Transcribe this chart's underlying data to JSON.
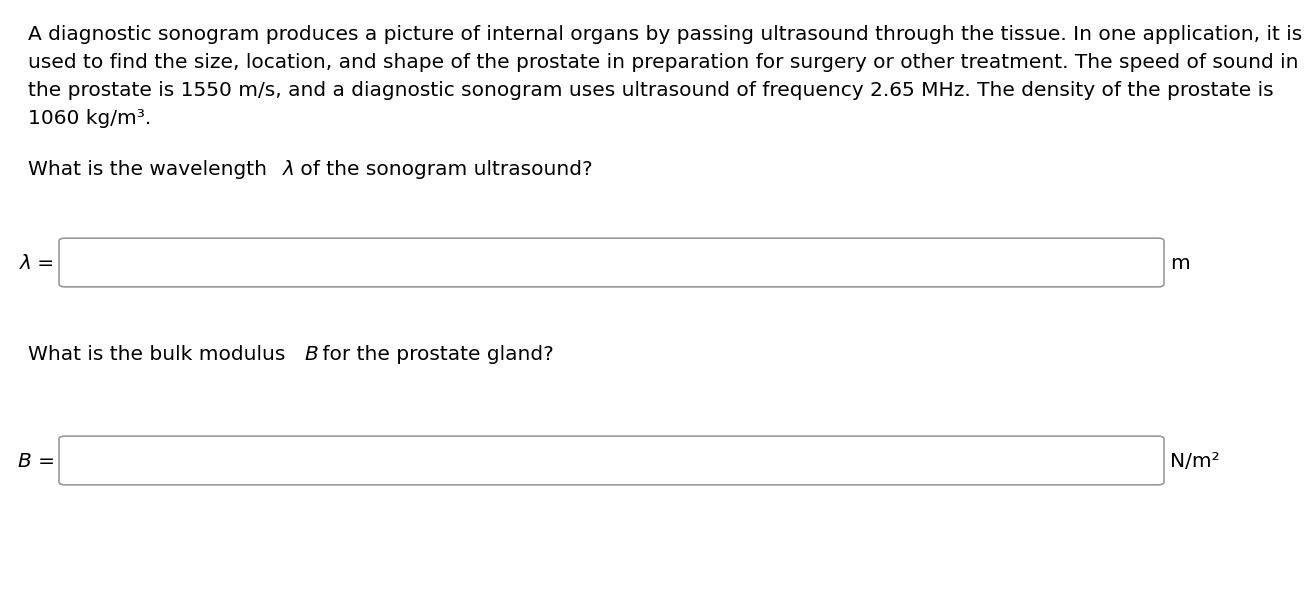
{
  "background_color": "#ffffff",
  "text_color": "#000000",
  "box_edge_color": "#999999",
  "font_family": "DejaVu Sans",
  "font_size_body": 14.5,
  "font_size_label": 14.5,
  "font_size_unit": 14.5,
  "para_line1": "A diagnostic sonogram produces a picture of internal organs by passing ultrasound through the tissue. In one application, it is",
  "para_line2": "used to find the size, location, and shape of the prostate in preparation for surgery or other treatment. The speed of sound in",
  "para_line3": "the prostate is 1550 m/s, and a diagnostic sonogram uses ultrasound of frequency 2.65 MHz. The density of the prostate is",
  "para_line4": "1060 kg/m³.",
  "q1_part1": "What is the wavelength ",
  "q1_lambda": "λ",
  "q1_part2": " of the sonogram ultrasound?",
  "q2_part1": "What is the bulk modulus ",
  "q2_B": "B",
  "q2_part2": " for the prostate gland?",
  "label1": "λ =",
  "unit1": "m",
  "label2": "B =",
  "unit2": "N/m²"
}
